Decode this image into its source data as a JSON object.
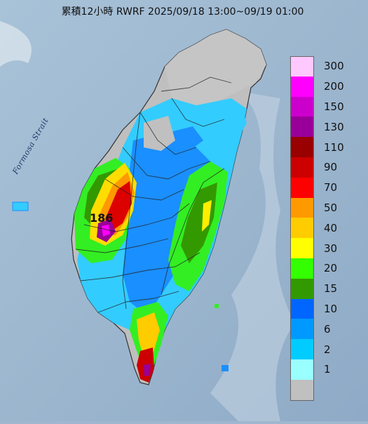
{
  "title": {
    "text": "累積12小時 RWRF 2025/09/18 13:00~09/19 01:00"
  },
  "map": {
    "sea_label": "Formosa Strait",
    "peak_label": "186"
  },
  "legend": {
    "items": [
      {
        "label": "300",
        "color": "#ffc8ff"
      },
      {
        "label": "200",
        "color": "#ff00ff"
      },
      {
        "label": "150",
        "color": "#cc00cc"
      },
      {
        "label": "130",
        "color": "#990099"
      },
      {
        "label": "110",
        "color": "#990000"
      },
      {
        "label": "90",
        "color": "#cc0000"
      },
      {
        "label": "70",
        "color": "#ff0000"
      },
      {
        "label": "50",
        "color": "#ff9900"
      },
      {
        "label": "40",
        "color": "#ffcc00"
      },
      {
        "label": "30",
        "color": "#ffff00"
      },
      {
        "label": "20",
        "color": "#33ff00"
      },
      {
        "label": "15",
        "color": "#339900"
      },
      {
        "label": "10",
        "color": "#0066ff"
      },
      {
        "label": "6",
        "color": "#0099ff"
      },
      {
        "label": "2",
        "color": "#00ccff"
      },
      {
        "label": "1",
        "color": "#99ffff"
      },
      {
        "label": "",
        "color": "#c0c0c0"
      }
    ]
  }
}
